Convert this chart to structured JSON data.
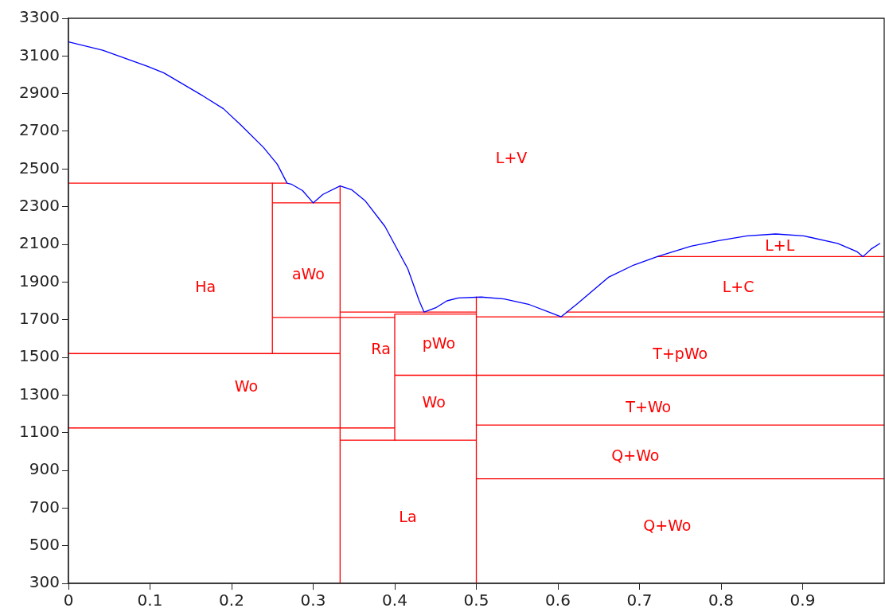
{
  "chart_data": {
    "type": "line",
    "marker": "none",
    "line_style": "solid",
    "legend": false,
    "grid": false,
    "xlim": [
      0,
      1
    ],
    "xticks": [
      0,
      0.1,
      0.2,
      0.3,
      0.4,
      0.5,
      0.6,
      0.7,
      0.8,
      0.9
    ],
    "ylim": [
      300,
      3300
    ],
    "yticks": [
      300,
      500,
      700,
      900,
      1100,
      1300,
      1500,
      1700,
      1900,
      2100,
      2300,
      2500,
      2700,
      2900,
      3100,
      3300
    ],
    "series": [
      {
        "color": "#0000ff",
        "x": [
          0,
          0.042,
          0.097,
          0.117,
          0.166,
          0.19,
          0.211,
          0.239,
          0.256,
          0.268,
          0.273,
          0.287,
          0.3,
          0.312,
          0.333,
          0.347,
          0.364,
          0.388,
          0.416,
          0.43,
          0.436,
          0.451,
          0.464,
          0.478,
          0.506,
          0.534,
          0.565,
          0.589,
          0.604,
          0.624,
          0.662,
          0.693,
          0.722,
          0.763,
          0.797,
          0.832,
          0.867,
          0.901,
          0.943,
          0.967,
          0.974,
          0.984,
          0.995
        ],
        "values": [
          3175,
          3130,
          3045,
          3010,
          2885,
          2820,
          2735,
          2615,
          2525,
          2425,
          2420,
          2385,
          2320,
          2365,
          2410,
          2390,
          2330,
          2195,
          1970,
          1800,
          1740,
          1765,
          1800,
          1815,
          1820,
          1810,
          1780,
          1740,
          1715,
          1785,
          1925,
          1990,
          2035,
          2090,
          2120,
          2145,
          2155,
          2145,
          2105,
          2060,
          2035,
          2075,
          2105
        ]
      },
      {
        "color": "#ff0000",
        "x": [
          0,
          0.268
        ],
        "values": [
          2425,
          2425
        ]
      },
      {
        "color": "#ff0000",
        "x": [
          0.25,
          0.25
        ],
        "values": [
          2425,
          1520
        ]
      },
      {
        "color": "#ff0000",
        "x": [
          0.25,
          0.333
        ],
        "values": [
          2320,
          2320
        ]
      },
      {
        "color": "#ff0000",
        "x": [
          0.333,
          0.333
        ],
        "values": [
          2410,
          300
        ]
      },
      {
        "color": "#ff0000",
        "x": [
          0.25,
          0.4
        ],
        "values": [
          1712,
          1712
        ]
      },
      {
        "color": "#ff0000",
        "x": [
          0,
          0.333
        ],
        "values": [
          1520,
          1520
        ]
      },
      {
        "color": "#ff0000",
        "x": [
          0,
          0.4
        ],
        "values": [
          1125,
          1125
        ]
      },
      {
        "color": "#ff0000",
        "x": [
          0.333,
          0.5
        ],
        "values": [
          1740,
          1740
        ]
      },
      {
        "color": "#ff0000",
        "x": [
          0.4,
          0.5
        ],
        "values": [
          1730,
          1730
        ]
      },
      {
        "color": "#ff0000",
        "x": [
          0.4,
          0.4
        ],
        "values": [
          1730,
          1060
        ]
      },
      {
        "color": "#ff0000",
        "x": [
          0.4,
          1
        ],
        "values": [
          1405,
          1405
        ]
      },
      {
        "color": "#ff0000",
        "x": [
          0.333,
          0.5
        ],
        "values": [
          1060,
          1060
        ]
      },
      {
        "color": "#ff0000",
        "x": [
          0.5,
          0.5
        ],
        "values": [
          1820,
          300
        ]
      },
      {
        "color": "#ff0000",
        "x": [
          0.5,
          1
        ],
        "values": [
          1715,
          1715
        ]
      },
      {
        "color": "#ff0000",
        "x": [
          0.61,
          1
        ],
        "values": [
          1740,
          1740
        ]
      },
      {
        "color": "#ff0000",
        "x": [
          0.5,
          1
        ],
        "values": [
          1140,
          1140
        ]
      },
      {
        "color": "#ff0000",
        "x": [
          0.5,
          1
        ],
        "values": [
          855,
          855
        ]
      },
      {
        "color": "#ff0000",
        "x": [
          0.722,
          1
        ],
        "values": [
          2035,
          2035
        ]
      }
    ],
    "annotations": [
      "Ha",
      "aWo",
      "L+V",
      "L+L",
      "L+C",
      "Ra",
      "pWo",
      "T+pWo",
      "Wo",
      "Wo",
      "T+Wo",
      "Q+Wo",
      "La",
      "Q+Wo"
    ]
  }
}
